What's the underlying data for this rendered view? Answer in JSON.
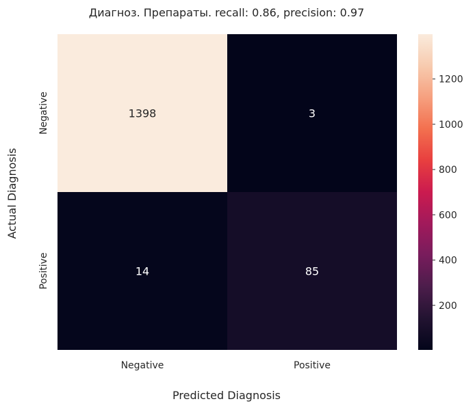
{
  "chart_data": {
    "type": "heatmap",
    "title": "Диагноз. Препараты. recall: 0.86, precision: 0.97",
    "xlabel": "Predicted Diagnosis",
    "ylabel": "Actual Diagnosis",
    "x_categories": [
      "Negative",
      "Positive"
    ],
    "y_categories": [
      "Negative",
      "Positive"
    ],
    "values": [
      [
        1398,
        3
      ],
      [
        14,
        85
      ]
    ],
    "colorbar": {
      "range": [
        3,
        1398
      ],
      "ticks": [
        200,
        400,
        600,
        800,
        1000,
        1200
      ],
      "colormap": "rocket"
    },
    "text_colors": {
      "light_cell": "#262626",
      "dark_cell": "#ffffff"
    }
  }
}
